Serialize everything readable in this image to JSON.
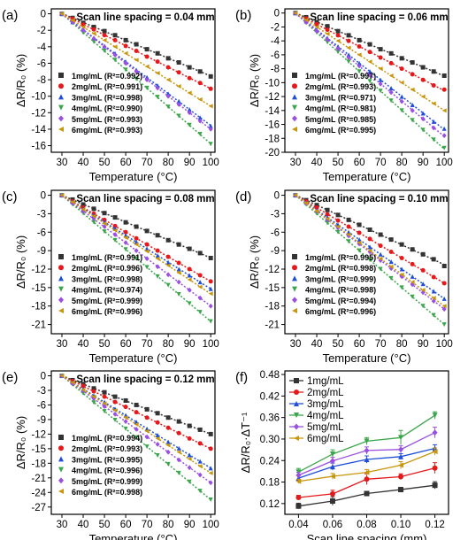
{
  "chart_data": [
    {
      "panel_label": "(a)",
      "type": "scatter",
      "title": "Scan line spacing = 0.04 mm",
      "xlabel": "Temperature (°C)",
      "ylabel": "ΔR/R₀ (%)",
      "xlim": [
        25,
        102
      ],
      "ylim": [
        -16.8,
        0.6
      ],
      "xticks": [
        30,
        40,
        50,
        60,
        70,
        80,
        90,
        100
      ],
      "yticks": [
        0,
        -2,
        -4,
        -6,
        -8,
        -10,
        -12,
        -14,
        -16
      ],
      "x": [
        30,
        35,
        40,
        45,
        50,
        55,
        60,
        65,
        70,
        75,
        80,
        85,
        90,
        95,
        100
      ],
      "series": [
        {
          "name": "1mg/mL (R²=0.992)",
          "values": [
            0,
            -0.5,
            -1.1,
            -1.6,
            -2.1,
            -2.6,
            -3.2,
            -3.7,
            -4.3,
            -4.8,
            -5.4,
            -5.9,
            -6.5,
            -7.0,
            -7.6
          ]
        },
        {
          "name": "2mg/mL (R²=0.991)",
          "values": [
            0,
            -0.6,
            -1.3,
            -1.9,
            -2.6,
            -3.2,
            -3.9,
            -4.5,
            -5.2,
            -5.8,
            -6.5,
            -7.1,
            -7.8,
            -8.4,
            -9.1
          ]
        },
        {
          "name": "3mg/mL (R²=0.998)",
          "values": [
            0,
            -1.0,
            -1.9,
            -2.9,
            -3.9,
            -4.8,
            -5.8,
            -6.8,
            -7.7,
            -8.7,
            -9.7,
            -10.6,
            -11.6,
            -12.6,
            -13.6
          ]
        },
        {
          "name": "4mg/mL (R²=0.990)",
          "values": [
            0,
            -1.1,
            -2.3,
            -3.4,
            -4.5,
            -5.6,
            -6.8,
            -7.9,
            -9.0,
            -10.1,
            -11.3,
            -12.4,
            -13.5,
            -14.6,
            -15.8
          ]
        },
        {
          "name": "5mg/mL (R²=0.993)",
          "values": [
            0,
            -1.0,
            -2.0,
            -3.0,
            -4.0,
            -5.0,
            -6.0,
            -7.0,
            -8.0,
            -9.0,
            -10.0,
            -11.0,
            -12.0,
            -13.0,
            -14.0
          ]
        },
        {
          "name": "6mg/mL (R²=0.993)",
          "values": [
            0,
            -0.8,
            -1.6,
            -2.4,
            -3.2,
            -4.0,
            -4.8,
            -5.6,
            -6.4,
            -7.2,
            -8.0,
            -8.8,
            -9.6,
            -10.4,
            -11.2
          ]
        }
      ]
    },
    {
      "panel_label": "(b)",
      "type": "scatter",
      "title": "Scan line spacing = 0.06 mm",
      "xlabel": "Temperature (°C)",
      "ylabel": "ΔR/R₀ (%)",
      "xlim": [
        25,
        102
      ],
      "ylim": [
        -20,
        0.6
      ],
      "xticks": [
        30,
        40,
        50,
        60,
        70,
        80,
        90,
        100
      ],
      "yticks": [
        0,
        -2,
        -4,
        -6,
        -8,
        -10,
        -12,
        -14,
        -16,
        -18,
        -20
      ],
      "x": [
        30,
        35,
        40,
        45,
        50,
        55,
        60,
        65,
        70,
        75,
        80,
        85,
        90,
        95,
        100
      ],
      "series": [
        {
          "name": "1mg/mL (R²=0.997)",
          "values": [
            0,
            -0.6,
            -1.3,
            -1.9,
            -2.6,
            -3.2,
            -3.9,
            -4.5,
            -5.2,
            -5.8,
            -6.5,
            -7.1,
            -7.8,
            -8.4,
            -9.0
          ]
        },
        {
          "name": "2mg/mL (R²=0.993)",
          "values": [
            0,
            -0.8,
            -1.6,
            -2.4,
            -3.2,
            -4.0,
            -4.8,
            -5.6,
            -6.4,
            -7.2,
            -8.0,
            -8.8,
            -9.6,
            -10.4,
            -11.0
          ]
        },
        {
          "name": "3mg/mL (R²=0.971)",
          "values": [
            0,
            -1.2,
            -2.4,
            -3.6,
            -4.8,
            -6.0,
            -7.2,
            -8.4,
            -9.6,
            -10.8,
            -12.0,
            -13.2,
            -14.4,
            -15.6,
            -16.6
          ]
        },
        {
          "name": "4mg/mL (R²=0.981)",
          "values": [
            0,
            -1.4,
            -2.8,
            -4.2,
            -5.6,
            -7.0,
            -8.4,
            -9.8,
            -11.2,
            -12.6,
            -14.0,
            -15.4,
            -16.8,
            -18.2,
            -19.4
          ]
        },
        {
          "name": "5mg/mL (R²=0.985)",
          "values": [
            0,
            -1.3,
            -2.6,
            -3.8,
            -5.1,
            -6.4,
            -7.6,
            -8.9,
            -10.2,
            -11.4,
            -12.7,
            -14.0,
            -15.2,
            -16.5,
            -17.6
          ]
        },
        {
          "name": "6mg/mL (R²=0.995)",
          "values": [
            0,
            -1.0,
            -2.0,
            -3.0,
            -4.0,
            -5.0,
            -6.0,
            -7.0,
            -8.0,
            -9.0,
            -10.0,
            -11.0,
            -12.0,
            -13.0,
            -14.0
          ]
        }
      ]
    },
    {
      "panel_label": "(c)",
      "type": "scatter",
      "title": "Scan line spacing = 0.08 mm",
      "xlabel": "Temperature (°C)",
      "ylabel": "ΔR/R₀ (%)",
      "xlim": [
        25,
        102
      ],
      "ylim": [
        -22.5,
        0.8
      ],
      "xticks": [
        30,
        40,
        50,
        60,
        70,
        80,
        90,
        100
      ],
      "yticks": [
        0,
        -3,
        -6,
        -9,
        -12,
        -15,
        -18,
        -21
      ],
      "x": [
        30,
        35,
        40,
        45,
        50,
        55,
        60,
        65,
        70,
        75,
        80,
        85,
        90,
        95,
        100
      ],
      "series": [
        {
          "name": "1mg/mL (R²=0.991)",
          "values": [
            0,
            -0.7,
            -1.5,
            -2.2,
            -2.9,
            -3.6,
            -4.4,
            -5.1,
            -5.8,
            -6.5,
            -7.3,
            -8.0,
            -8.7,
            -9.4,
            -10.2
          ]
        },
        {
          "name": "2mg/mL (R²=0.996)",
          "values": [
            0,
            -1.0,
            -2.0,
            -3.0,
            -4.0,
            -5.0,
            -6.0,
            -7.0,
            -8.0,
            -9.0,
            -10.0,
            -11.0,
            -12.0,
            -13.0,
            -14.0
          ]
        },
        {
          "name": "3mg/mL (R²=0.998)",
          "values": [
            0,
            -1.1,
            -2.2,
            -3.3,
            -4.3,
            -5.4,
            -6.5,
            -7.6,
            -8.7,
            -9.8,
            -10.9,
            -12.0,
            -13.0,
            -14.1,
            -15.2
          ]
        },
        {
          "name": "4mg/mL (R²=0.974)",
          "values": [
            0,
            -1.5,
            -2.9,
            -4.4,
            -5.9,
            -7.3,
            -8.8,
            -10.3,
            -11.7,
            -13.2,
            -14.6,
            -16.1,
            -17.6,
            -19.0,
            -20.5
          ]
        },
        {
          "name": "5mg/mL (R²=0.999)",
          "values": [
            0,
            -1.3,
            -2.6,
            -3.8,
            -5.1,
            -6.4,
            -7.7,
            -9.0,
            -10.3,
            -11.6,
            -12.9,
            -14.1,
            -15.4,
            -16.7,
            -18.0
          ]
        },
        {
          "name": "6mg/mL (R²=0.996)",
          "values": [
            0,
            -1.1,
            -2.3,
            -3.4,
            -4.6,
            -5.7,
            -6.9,
            -8.0,
            -9.1,
            -10.3,
            -11.4,
            -12.6,
            -13.7,
            -14.9,
            -16.0
          ]
        }
      ]
    },
    {
      "panel_label": "(d)",
      "type": "scatter",
      "title": "Scan line spacing = 0.10 mm",
      "xlabel": "Temperature (°C)",
      "ylabel": "ΔR/R₀ (%)",
      "xlim": [
        25,
        102
      ],
      "ylim": [
        -22.5,
        0.8
      ],
      "xticks": [
        30,
        40,
        50,
        60,
        70,
        80,
        90,
        100
      ],
      "yticks": [
        0,
        -3,
        -6,
        -9,
        -12,
        -15,
        -18,
        -21
      ],
      "x": [
        30,
        35,
        40,
        45,
        50,
        55,
        60,
        65,
        70,
        75,
        80,
        85,
        90,
        95,
        100
      ],
      "series": [
        {
          "name": "1mg/mL (R²=0.995)",
          "values": [
            0,
            -0.8,
            -1.6,
            -2.4,
            -3.2,
            -4.0,
            -4.8,
            -5.6,
            -6.4,
            -7.2,
            -8.0,
            -8.8,
            -9.6,
            -10.4,
            -11.5
          ]
        },
        {
          "name": "2mg/mL (R²=0.998)",
          "values": [
            0,
            -1.0,
            -2.0,
            -3.1,
            -4.1,
            -5.1,
            -6.1,
            -7.1,
            -8.2,
            -9.2,
            -10.2,
            -11.2,
            -12.2,
            -13.3,
            -14.3
          ]
        },
        {
          "name": "3mg/mL (R²=0.999)",
          "values": [
            0,
            -1.2,
            -2.4,
            -3.6,
            -4.8,
            -6.0,
            -7.2,
            -8.4,
            -9.6,
            -10.8,
            -12.0,
            -13.2,
            -14.4,
            -15.6,
            -16.8
          ]
        },
        {
          "name": "4mg/mL (R²=0.998)",
          "values": [
            0,
            -1.5,
            -3.0,
            -4.5,
            -6.0,
            -7.5,
            -9.0,
            -10.5,
            -12.0,
            -13.5,
            -15.0,
            -16.5,
            -18.0,
            -19.5,
            -21.0
          ]
        },
        {
          "name": "5mg/mL (R²=0.994)",
          "values": [
            0,
            -1.3,
            -2.6,
            -4.0,
            -5.3,
            -6.6,
            -7.9,
            -9.2,
            -10.6,
            -11.9,
            -13.2,
            -14.5,
            -15.8,
            -17.2,
            -18.5
          ]
        },
        {
          "name": "6mg/mL (R²=0.996)",
          "values": [
            0,
            -1.3,
            -2.6,
            -3.8,
            -5.1,
            -6.4,
            -7.7,
            -9.0,
            -10.3,
            -11.6,
            -12.9,
            -14.1,
            -15.4,
            -16.7,
            -18.0
          ]
        }
      ]
    },
    {
      "panel_label": "(e)",
      "type": "scatter",
      "title": "Scan line spacing = 0.12 mm",
      "xlabel": "Temperature (°C)",
      "ylabel": "ΔR/R₀ (%)",
      "xlim": [
        25,
        102
      ],
      "ylim": [
        -28.5,
        1
      ],
      "xticks": [
        30,
        40,
        50,
        60,
        70,
        80,
        90,
        100
      ],
      "yticks": [
        0,
        -3,
        -6,
        -9,
        -12,
        -15,
        -18,
        -21,
        -24,
        -27
      ],
      "x": [
        30,
        35,
        40,
        45,
        50,
        55,
        60,
        65,
        70,
        75,
        80,
        85,
        90,
        95,
        100
      ],
      "series": [
        {
          "name": "1mg/mL (R²=0.994)",
          "values": [
            0,
            -0.9,
            -1.7,
            -2.6,
            -3.4,
            -4.3,
            -5.1,
            -6.0,
            -6.9,
            -7.7,
            -8.6,
            -9.4,
            -10.3,
            -11.1,
            -12.0
          ]
        },
        {
          "name": "2mg/mL (R²=0.993)",
          "values": [
            0,
            -1.1,
            -2.1,
            -3.2,
            -4.3,
            -5.4,
            -6.4,
            -7.5,
            -8.6,
            -9.6,
            -10.7,
            -11.8,
            -12.9,
            -13.9,
            -15.0
          ]
        },
        {
          "name": "3mg/mL (R²=0.995)",
          "values": [
            0,
            -1.4,
            -2.7,
            -4.1,
            -5.4,
            -6.8,
            -8.1,
            -9.5,
            -10.9,
            -12.2,
            -13.6,
            -14.9,
            -16.3,
            -17.6,
            -19.0
          ]
        },
        {
          "name": "4mg/mL (R²=0.996)",
          "values": [
            0,
            -1.8,
            -3.6,
            -5.5,
            -7.3,
            -9.1,
            -10.9,
            -12.7,
            -14.6,
            -16.4,
            -18.2,
            -20.0,
            -21.8,
            -23.7,
            -25.5
          ]
        },
        {
          "name": "5mg/mL (R²=0.999)",
          "values": [
            0,
            -1.6,
            -3.1,
            -4.7,
            -6.3,
            -7.9,
            -9.4,
            -11.0,
            -12.6,
            -14.1,
            -15.7,
            -17.3,
            -18.9,
            -20.4,
            -22.0
          ]
        },
        {
          "name": "6mg/mL (R²=0.998)",
          "values": [
            0,
            -1.4,
            -2.9,
            -4.3,
            -5.7,
            -7.1,
            -8.6,
            -10.0,
            -11.4,
            -12.9,
            -14.3,
            -15.7,
            -17.1,
            -18.6,
            -20.0
          ]
        }
      ]
    },
    {
      "panel_label": "(f)",
      "type": "line",
      "title": "",
      "xlabel": "Scan line spacing (mm)",
      "ylabel": "ΔR/R₀·ΔT⁻¹",
      "xlim": [
        0.032,
        0.128
      ],
      "ylim": [
        0.09,
        0.49
      ],
      "xticks": [
        0.04,
        0.06,
        0.08,
        0.1,
        0.12
      ],
      "xtick_labels": [
        "0.04",
        "0.06",
        "0.08",
        "0.10",
        "0.12"
      ],
      "yticks": [
        0.12,
        0.18,
        0.24,
        0.3,
        0.36,
        0.42,
        0.48
      ],
      "ytick_labels": [
        "0.12",
        "0.18",
        "0.24",
        "0.30",
        "0.36",
        "0.42",
        "0.48"
      ],
      "x": [
        0.04,
        0.06,
        0.08,
        0.1,
        0.12
      ],
      "series": [
        {
          "name": "1mg/mL",
          "values": [
            0.113,
            0.127,
            0.148,
            0.159,
            0.171
          ],
          "errors": [
            0.008,
            0.012,
            0.006,
            0.006,
            0.01
          ]
        },
        {
          "name": "2mg/mL",
          "values": [
            0.137,
            0.147,
            0.188,
            0.195,
            0.219
          ],
          "errors": [
            0.006,
            0.01,
            0.015,
            0.008,
            0.015
          ]
        },
        {
          "name": "3mg/mL",
          "values": [
            0.191,
            0.223,
            0.243,
            0.251,
            0.274
          ],
          "errors": [
            0.008,
            0.01,
            0.01,
            0.008,
            0.01
          ]
        },
        {
          "name": "4mg/mL",
          "values": [
            0.208,
            0.258,
            0.294,
            0.304,
            0.366
          ],
          "errors": [
            0.01,
            0.012,
            0.01,
            0.02,
            0.01
          ]
        },
        {
          "name": "5mg/mL",
          "values": [
            0.199,
            0.239,
            0.268,
            0.271,
            0.318
          ],
          "errors": [
            0.008,
            0.01,
            0.01,
            0.01,
            0.015
          ]
        },
        {
          "name": "6mg/mL",
          "values": [
            0.182,
            0.196,
            0.207,
            0.227,
            0.265
          ],
          "errors": [
            0.006,
            0.008,
            0.008,
            0.01,
            0.01
          ]
        }
      ]
    }
  ],
  "styles": {
    "colors": [
      "#333333",
      "#e31a1c",
      "#1f4fd8",
      "#3aa64a",
      "#9a4fe0",
      "#c8960c"
    ],
    "markers": [
      "square",
      "circle",
      "triangle-up",
      "triangle-down",
      "diamond",
      "triangle-left"
    ]
  }
}
